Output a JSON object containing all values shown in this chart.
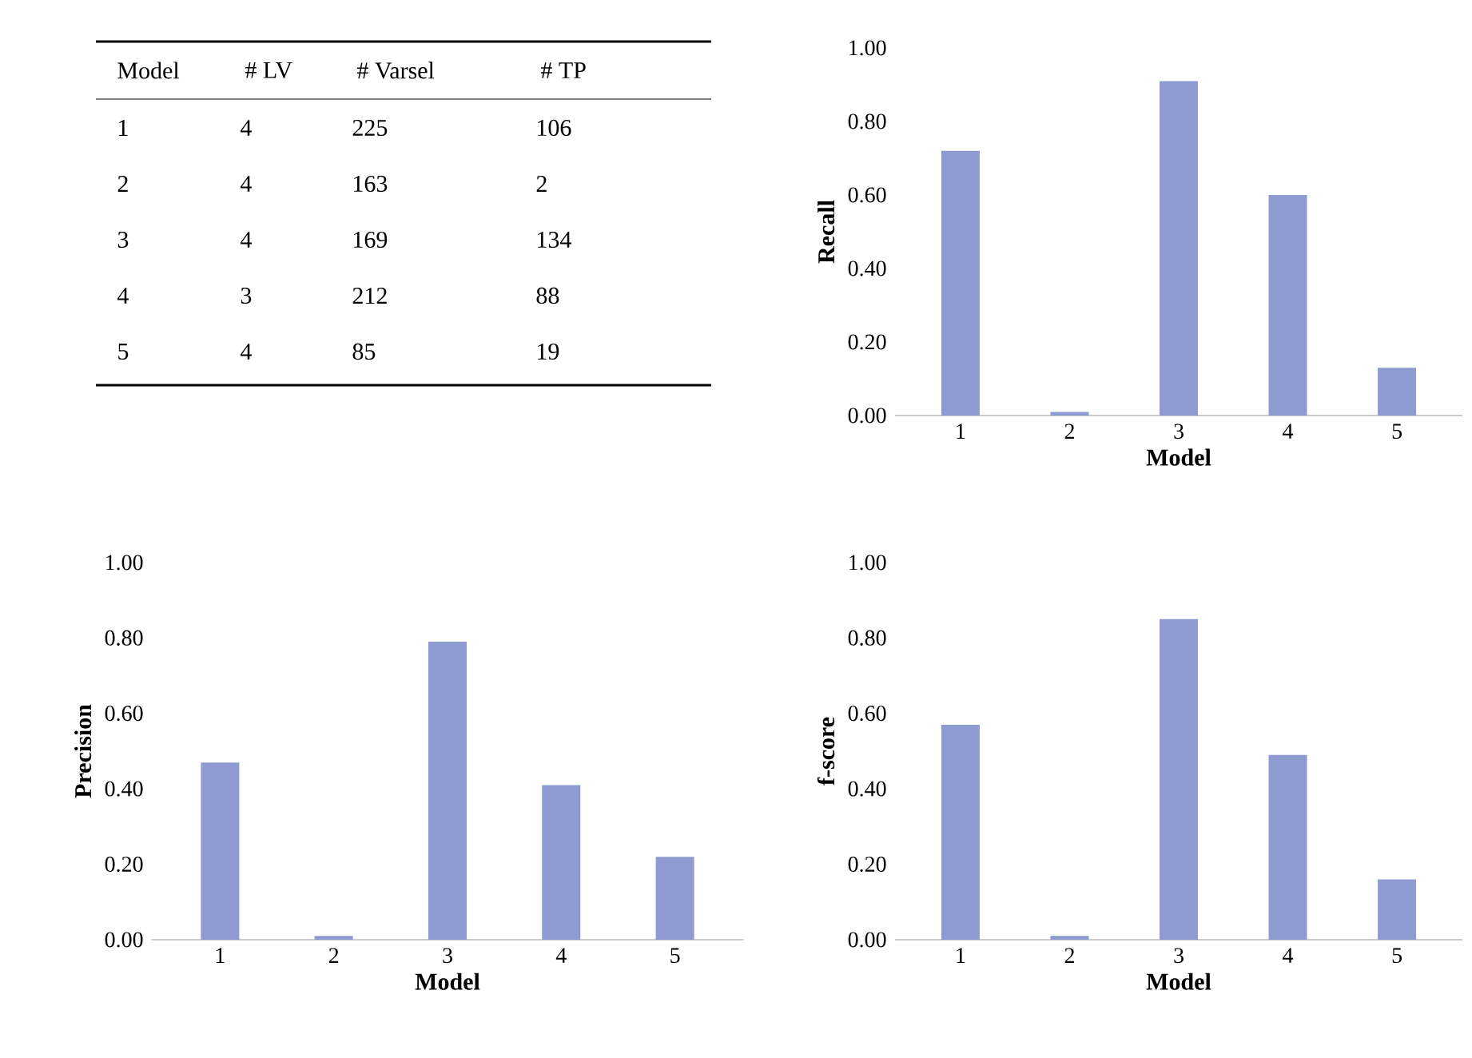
{
  "chart_data": [
    {
      "type": "heatmap",
      "ylabel": "Model",
      "categories": [
        "# LV",
        "# Varsel",
        "# TP"
      ],
      "y_categories": [
        "1",
        "2",
        "3",
        "4",
        "5"
      ],
      "data_labels": true,
      "cells": [
        [
          4,
          225,
          106
        ],
        [
          4,
          163,
          2
        ],
        [
          4,
          169,
          134
        ],
        [
          3,
          212,
          88
        ],
        [
          4,
          85,
          19
        ]
      ]
    },
    {
      "type": "bar",
      "xlabel": "Model",
      "ylabel": "Recall",
      "categories": [
        "1",
        "2",
        "3",
        "4",
        "5"
      ],
      "values": [
        0.72,
        0.01,
        0.91,
        0.6,
        0.13
      ],
      "color": "#8d9bd0",
      "ylim": [
        0,
        1
      ],
      "yticks": [
        {
          "value": 0,
          "label": "0.00"
        },
        {
          "value": 0.2,
          "label": "0.20"
        },
        {
          "value": 0.4,
          "label": "0.40"
        },
        {
          "value": 0.6,
          "label": "0.60"
        },
        {
          "value": 0.8,
          "label": "0.80"
        },
        {
          "value": 1,
          "label": "1.00"
        }
      ]
    },
    {
      "type": "bar",
      "xlabel": "Model",
      "ylabel": "Precision",
      "categories": [
        "1",
        "2",
        "3",
        "4",
        "5"
      ],
      "values": [
        0.47,
        0.01,
        0.79,
        0.41,
        0.22
      ],
      "color": "#8d9bd0",
      "ylim": [
        0,
        1
      ],
      "yticks": [
        {
          "value": 0,
          "label": "0.00"
        },
        {
          "value": 0.2,
          "label": "0.20"
        },
        {
          "value": 0.4,
          "label": "0.40"
        },
        {
          "value": 0.6,
          "label": "0.60"
        },
        {
          "value": 0.8,
          "label": "0.80"
        },
        {
          "value": 1,
          "label": "1.00"
        }
      ]
    },
    {
      "type": "bar",
      "xlabel": "Model",
      "ylabel": "f-score",
      "categories": [
        "1",
        "2",
        "3",
        "4",
        "5"
      ],
      "values": [
        0.57,
        0.01,
        0.85,
        0.49,
        0.16
      ],
      "color": "#8d9bd0",
      "ylim": [
        0,
        1
      ],
      "yticks": [
        {
          "value": 0,
          "label": "0.00"
        },
        {
          "value": 0.2,
          "label": "0.20"
        },
        {
          "value": 0.4,
          "label": "0.40"
        },
        {
          "value": 0.6,
          "label": "0.60"
        },
        {
          "value": 0.8,
          "label": "0.80"
        },
        {
          "value": 1,
          "label": "1.00"
        }
      ]
    }
  ]
}
